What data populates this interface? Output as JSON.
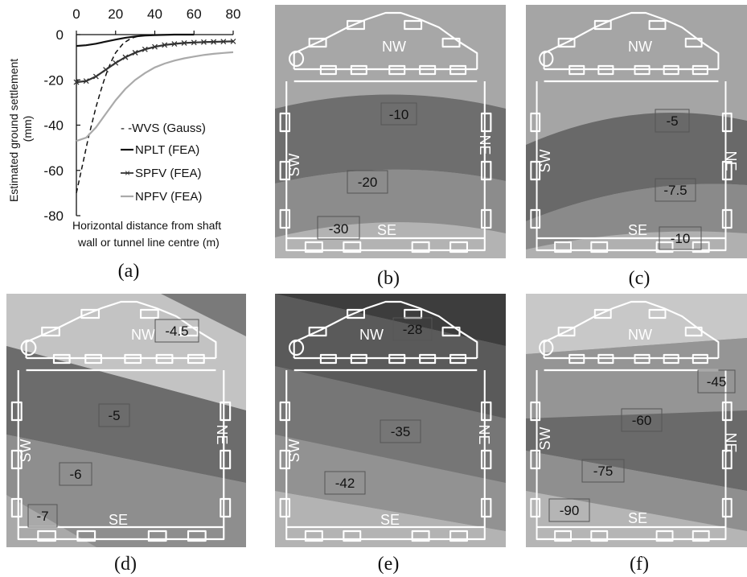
{
  "chart_data": [
    {
      "panel": "(a)",
      "type": "line",
      "xlabel": "Horizontal distance from shaft wall or tunnel line centre  (m)",
      "xlabel_lines": [
        "Horizontal distance from shaft",
        "wall or tunnel line centre  (m)"
      ],
      "ylabel": "Estimated ground settlement (mm)",
      "ylabel_lines": [
        "Estimated ground settlement",
        "(mm)"
      ],
      "xlim": [
        0,
        80
      ],
      "ylim": [
        -80,
        0
      ],
      "xticks": [
        "0",
        "20",
        "40",
        "60",
        "80"
      ],
      "yticks": [
        "0",
        "-20",
        "-40",
        "-60",
        "-80"
      ],
      "series": [
        {
          "name": "WVS (Gauss)",
          "legend_label": "- -WVS (Gauss)",
          "color": "#111111",
          "style": "dashed",
          "x": [
            0,
            2,
            4,
            6,
            8,
            10,
            12,
            14,
            16,
            18,
            20,
            24,
            28,
            32,
            36,
            40
          ],
          "y": [
            -70,
            -62,
            -54,
            -46,
            -39,
            -32,
            -26,
            -20.5,
            -15.5,
            -11.5,
            -8,
            -3.8,
            -1.6,
            -0.6,
            -0.2,
            0
          ]
        },
        {
          "name": "NPLT (FEA)",
          "legend_label": "NPLT (FEA)",
          "color": "#111111",
          "style": "solid",
          "x": [
            0,
            5,
            10,
            15,
            20,
            25,
            30,
            35,
            40,
            50,
            60
          ],
          "y": [
            -5,
            -4.7,
            -4,
            -3.1,
            -2.2,
            -1.4,
            -0.8,
            -0.4,
            -0.2,
            0,
            0
          ]
        },
        {
          "name": "SPFV (FEA)",
          "legend_label": "SPFV (FEA)",
          "color": "#333333",
          "style": "solid-x",
          "x": [
            0,
            5,
            10,
            15,
            20,
            25,
            30,
            35,
            40,
            45,
            50,
            55,
            60,
            65,
            70,
            75,
            80
          ],
          "y": [
            -21,
            -20.5,
            -18.5,
            -15.5,
            -12.5,
            -10,
            -8,
            -6.5,
            -5.4,
            -4.6,
            -4.1,
            -3.7,
            -3.5,
            -3.3,
            -3.2,
            -3.1,
            -3
          ]
        },
        {
          "name": "NPFV (FEA)",
          "legend_label": "NPFV (FEA)",
          "color": "#aaaaaa",
          "style": "solid",
          "x": [
            0,
            5,
            10,
            15,
            20,
            25,
            30,
            35,
            40,
            45,
            50,
            55,
            60,
            65,
            70,
            75,
            80
          ],
          "y": [
            -47,
            -45.5,
            -41,
            -35,
            -29,
            -24,
            -20,
            -17,
            -14.5,
            -12.8,
            -11.5,
            -10.5,
            -9.7,
            -9,
            -8.5,
            -8.1,
            -7.8
          ]
        }
      ]
    },
    {
      "panel": "(b)",
      "type": "heatmap",
      "orientation_labels": {
        "nw": "NW",
        "sw": "SW",
        "ne": "NE",
        "se": "SE"
      },
      "contour_labels": [
        "-10",
        "-20",
        "-30"
      ],
      "bands": [
        {
          "color": "#a7a7a7"
        },
        {
          "color": "#6e6e6e"
        },
        {
          "color": "#8c8c8c"
        },
        {
          "color": "#b3b3b3"
        }
      ]
    },
    {
      "panel": "(c)",
      "type": "heatmap",
      "orientation_labels": {
        "nw": "NW",
        "sw": "SW",
        "ne": "NE",
        "se": "SE"
      },
      "contour_labels": [
        "-5",
        "-7.5",
        "-10"
      ],
      "bands": [
        {
          "color": "#a5a5a5"
        },
        {
          "color": "#696969"
        },
        {
          "color": "#8a8a8a"
        },
        {
          "color": "#b0b0b0"
        }
      ]
    },
    {
      "panel": "(d)",
      "type": "heatmap",
      "orientation_labels": {
        "nw": "NW",
        "sw": "SW",
        "ne": "NE",
        "se": "SE"
      },
      "contour_labels": [
        "-4.5",
        "-5",
        "-6",
        "-7"
      ],
      "bands": [
        {
          "color": "#7a7a7a"
        },
        {
          "color": "#c3c3c3"
        },
        {
          "color": "#6c6c6c"
        },
        {
          "color": "#8e8e8e"
        },
        {
          "color": "#a9a9a9"
        }
      ]
    },
    {
      "panel": "(e)",
      "type": "heatmap",
      "orientation_labels": {
        "nw": "NW",
        "sw": "SW",
        "ne": "NE",
        "se": "SE"
      },
      "contour_labels": [
        "-28",
        "-35",
        "-42"
      ],
      "bands": [
        {
          "color": "#3d3d3d"
        },
        {
          "color": "#5a5a5a"
        },
        {
          "color": "#767676"
        },
        {
          "color": "#929292"
        },
        {
          "color": "#b3b3b3"
        }
      ]
    },
    {
      "panel": "(f)",
      "type": "heatmap",
      "orientation_labels": {
        "nw": "NW",
        "sw": "SW",
        "ne": "NE",
        "se": "SE"
      },
      "contour_labels": [
        "-45",
        "-60",
        "-75",
        "-90"
      ],
      "bands": [
        {
          "color": "#c8c8c8"
        },
        {
          "color": "#959595"
        },
        {
          "color": "#6a6a6a"
        },
        {
          "color": "#8f8f8f"
        },
        {
          "color": "#b5b5b5"
        }
      ]
    }
  ],
  "captions": [
    "(a)",
    "(b)",
    "(c)",
    "(d)",
    "(e)",
    "(f)"
  ]
}
